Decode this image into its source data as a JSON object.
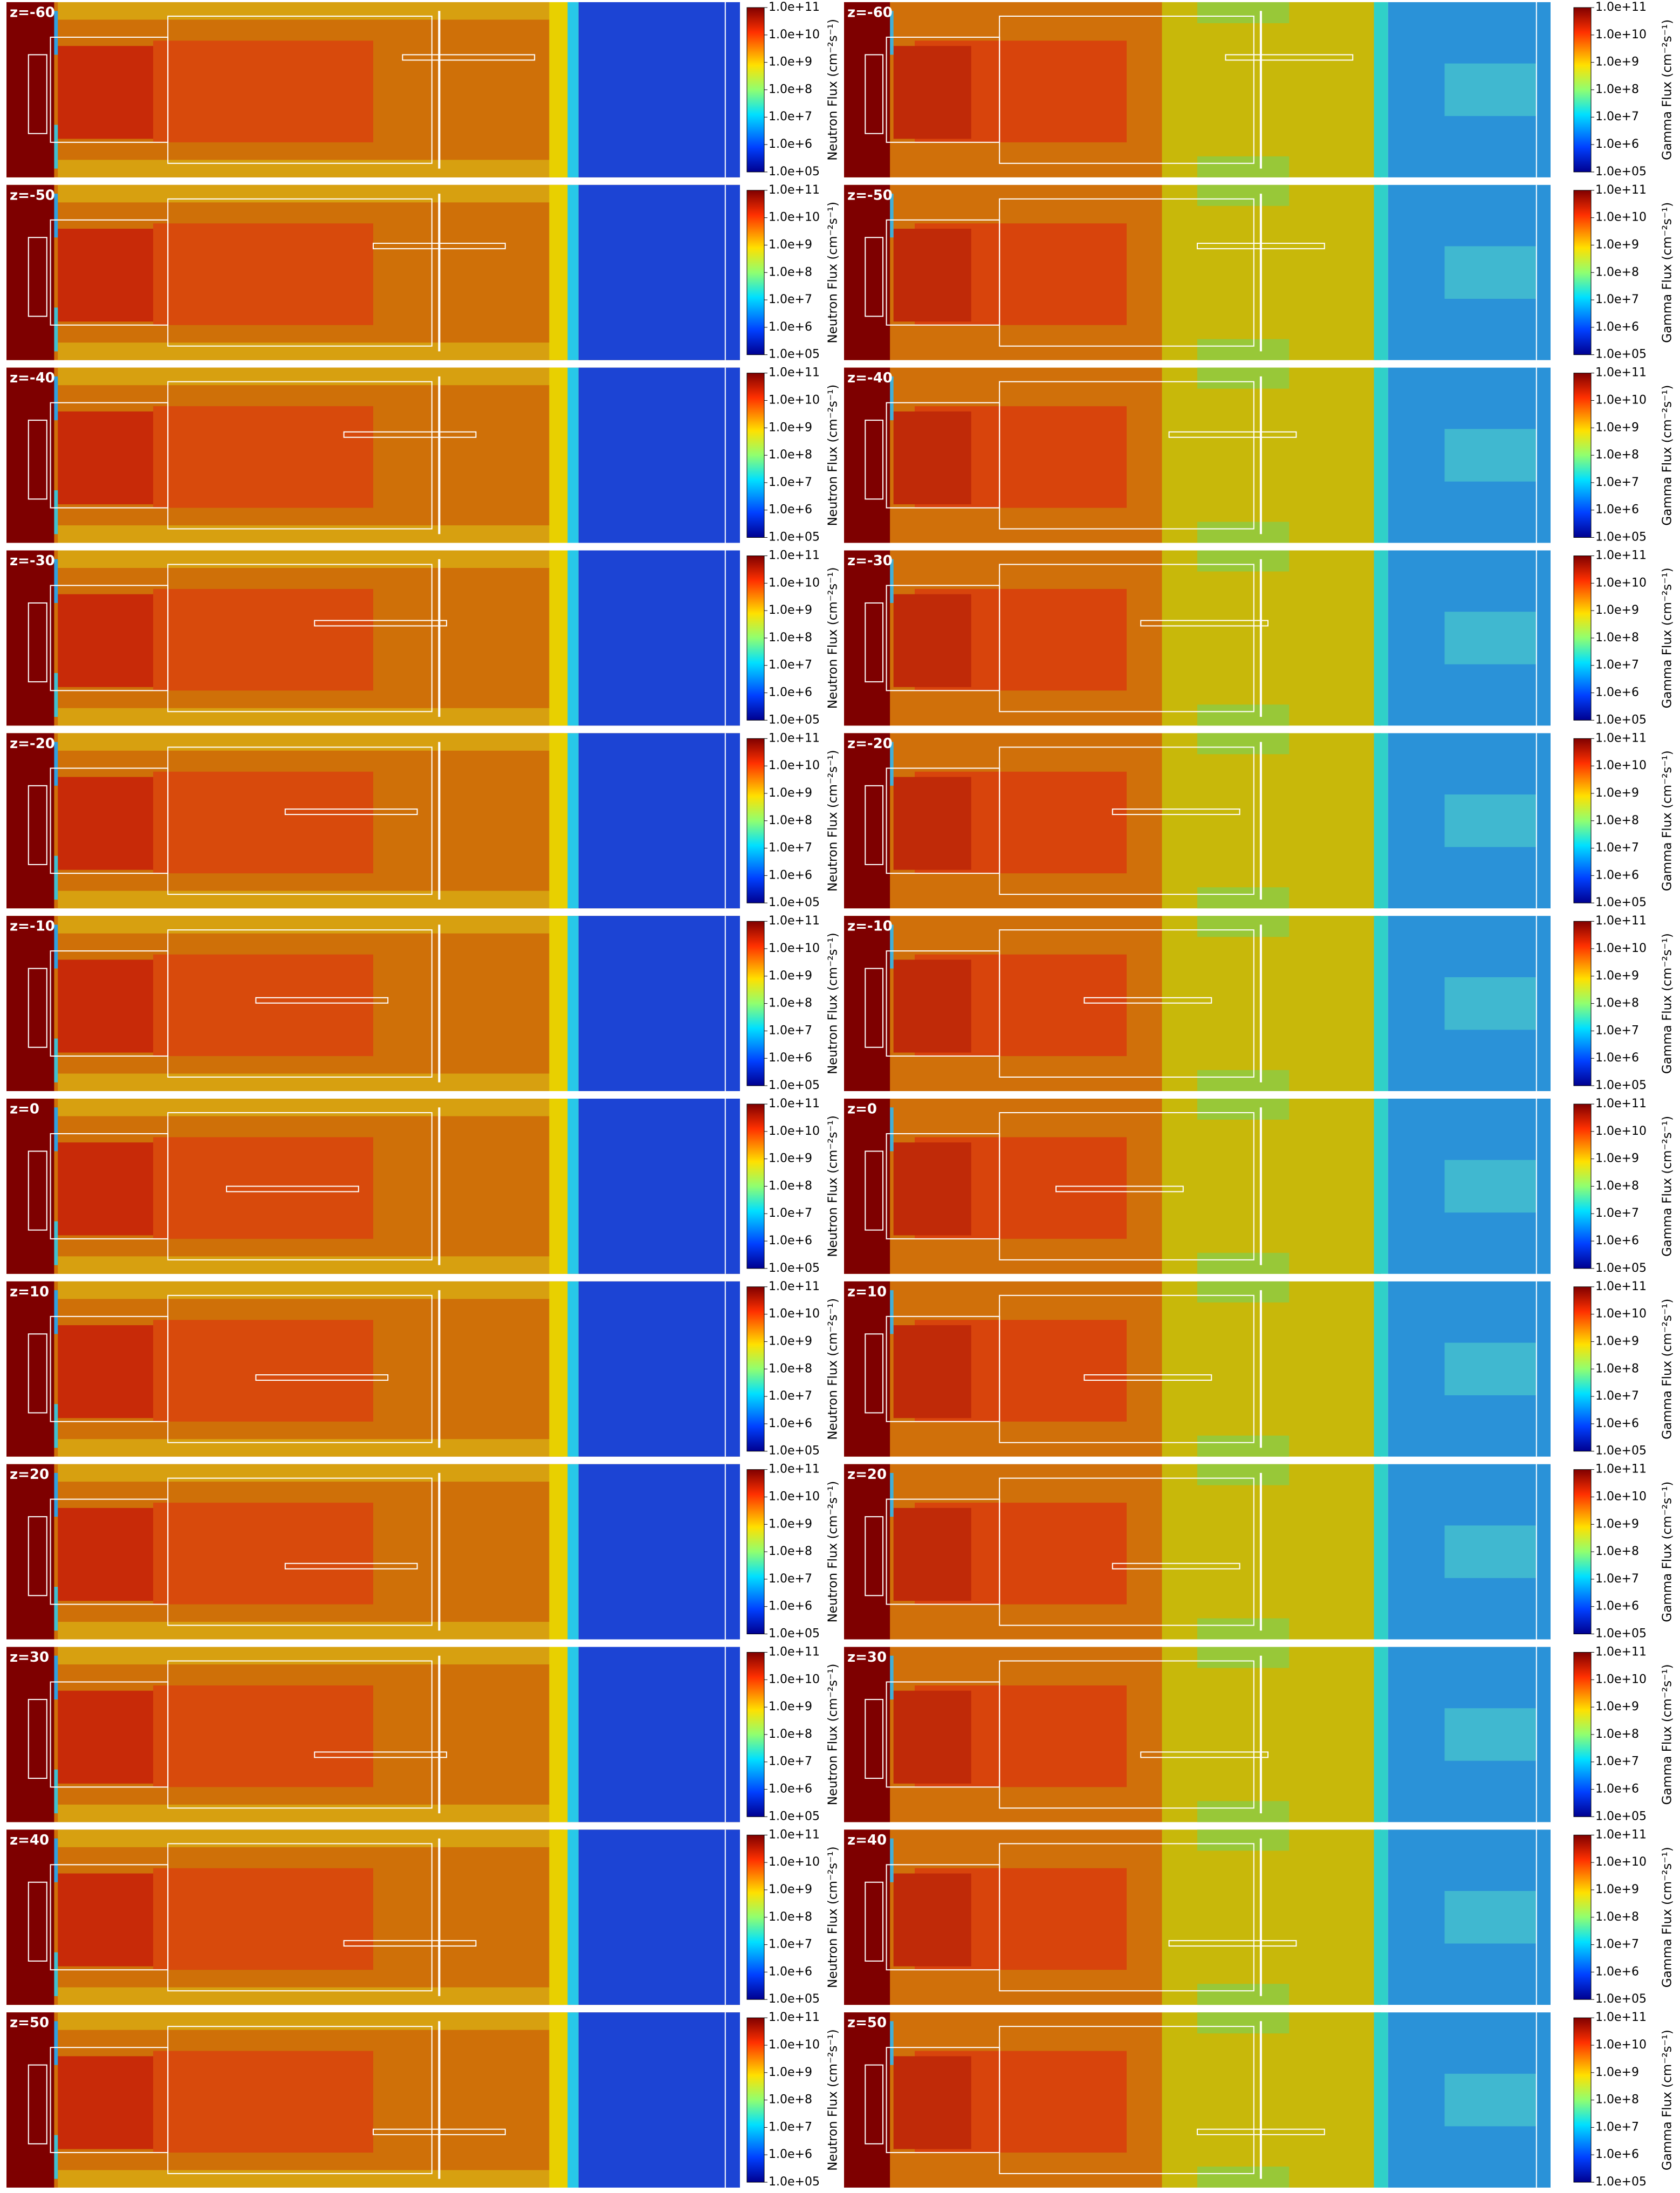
{
  "row_labels": [
    "z=-60",
    "z=-50",
    "z=-40",
    "z=-30",
    "z=-20",
    "z=-10",
    "z=0",
    "z=10",
    "z=20",
    "z=30",
    "z=40",
    "z=50"
  ],
  "columns": [
    {
      "colorbar_title": "Neutron Flux (cm⁻²s⁻¹)"
    },
    {
      "colorbar_title": "Gamma Flux (cm⁻²s⁻¹)"
    }
  ],
  "colorbar_ticks": [
    "1.0e+11",
    "1.0e+10",
    "1.0e+9",
    "1.0e+8",
    "1.0e+7",
    "1.0e+6",
    "1.0e+05"
  ]
}
